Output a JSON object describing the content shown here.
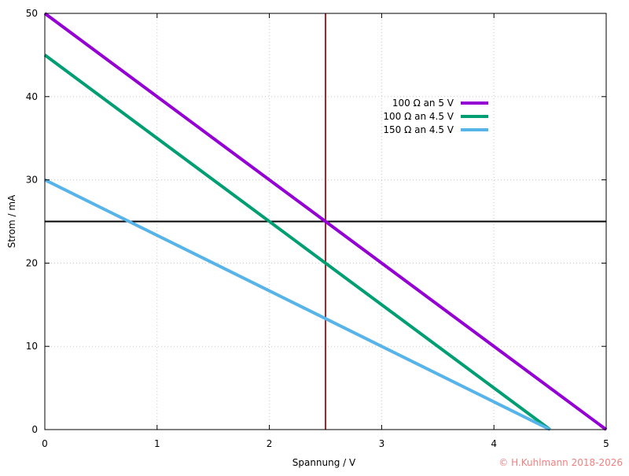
{
  "chart_data": {
    "type": "line",
    "xlabel": "Spannung / V",
    "ylabel": "Strom / mA",
    "xlim": [
      0,
      5
    ],
    "ylim": [
      0,
      50
    ],
    "x_ticks": [
      "0",
      "1",
      "2",
      "3",
      "4",
      "5"
    ],
    "y_ticks": [
      "0",
      "10",
      "20",
      "30",
      "40",
      "50"
    ],
    "grid": true,
    "legend_position": "top-right",
    "series": [
      {
        "name": "100 Ω an 5 V",
        "color": "#9400d3",
        "x": [
          0,
          5
        ],
        "y": [
          50,
          0
        ]
      },
      {
        "name": "100 Ω an 4.5 V",
        "color": "#009e73",
        "x": [
          0,
          4.5
        ],
        "y": [
          45,
          0
        ]
      },
      {
        "name": "150 Ω an 4.5 V",
        "color": "#56b4e9",
        "x": [
          0,
          4.5
        ],
        "y": [
          30,
          0
        ]
      }
    ],
    "reference_lines": [
      {
        "orientation": "horizontal",
        "value": 25,
        "color": "#000000"
      },
      {
        "orientation": "vertical",
        "value": 2.5,
        "color": "#b22222"
      }
    ],
    "copyright": "© H.Kuhlmann 2018-2026",
    "copyright_color": "#f08080"
  }
}
